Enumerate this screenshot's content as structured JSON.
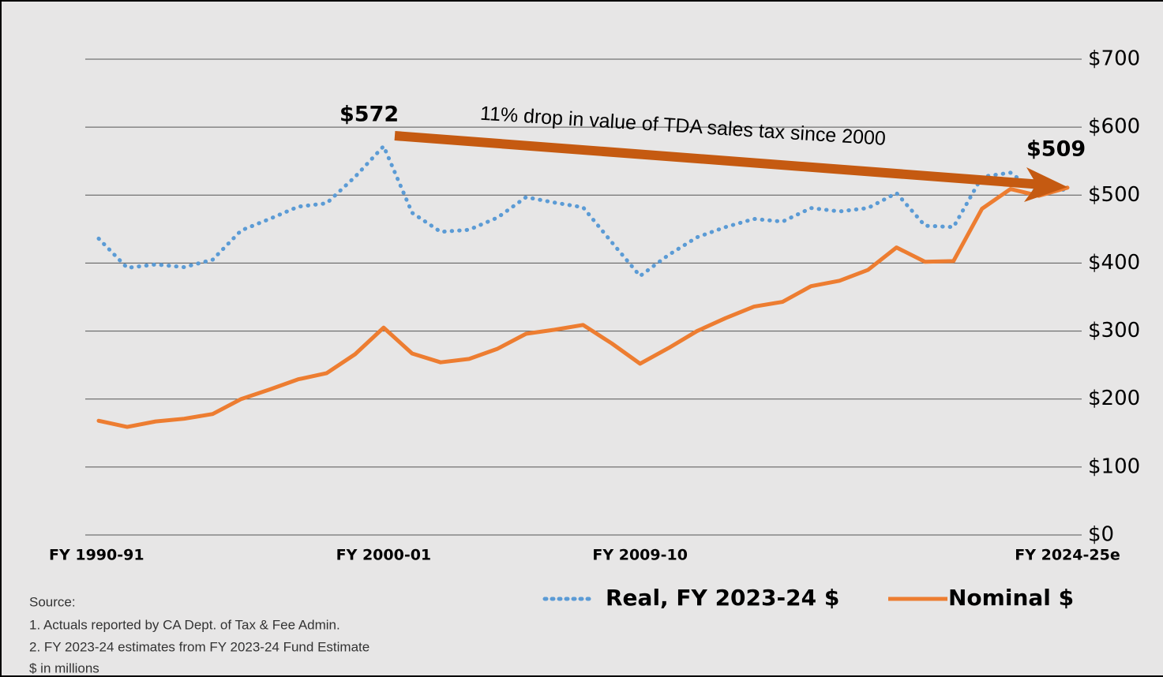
{
  "chart_data": {
    "type": "line",
    "categories": [
      "FY 1990-91",
      null,
      null,
      null,
      null,
      null,
      null,
      null,
      null,
      null,
      "FY 2000-01",
      null,
      null,
      null,
      null,
      null,
      null,
      null,
      null,
      "FY 2009-10",
      null,
      null,
      null,
      null,
      null,
      null,
      null,
      null,
      null,
      null,
      null,
      null,
      null,
      null,
      "FY 2024-25e"
    ],
    "series": [
      {
        "name": "Real, FY 2023-24 $",
        "color": "#5b9bd5",
        "style": "dotted",
        "values": [
          436,
          393,
          398,
          394,
          405,
          448,
          465,
          483,
          488,
          527,
          572,
          474,
          446,
          449,
          467,
          497,
          489,
          482,
          431,
          381,
          412,
          438,
          453,
          465,
          461,
          481,
          476,
          481,
          503,
          455,
          453,
          527,
          533,
          502,
          509
        ]
      },
      {
        "name": "Nominal $",
        "color": "#ed7d31",
        "style": "solid",
        "values": [
          168,
          159,
          167,
          171,
          178,
          200,
          214,
          229,
          238,
          266,
          305,
          267,
          254,
          259,
          274,
          296,
          302,
          309,
          282,
          252,
          275,
          300,
          319,
          336,
          343,
          366,
          374,
          390,
          423,
          402,
          403,
          480,
          509,
          499,
          511
        ]
      }
    ],
    "ylim": [
      0,
      700
    ],
    "yticks": [
      {
        "value": 0,
        "label": "$0"
      },
      {
        "value": 100,
        "label": "$100"
      },
      {
        "value": 200,
        "label": "$200"
      },
      {
        "value": 300,
        "label": "$300"
      },
      {
        "value": 400,
        "label": "$400"
      },
      {
        "value": 500,
        "label": "$500"
      },
      {
        "value": 600,
        "label": "$600"
      },
      {
        "value": 700,
        "label": "$700"
      }
    ],
    "grid": true,
    "axis_side": "right",
    "annotations": [
      "$572",
      "$509",
      "11% drop in value of TDA sales tax since 2000"
    ],
    "notes": [
      "Source:",
      "1.  Actuals reported by CA Dept. of Tax & Fee Admin.",
      "2. FY 2023-24 estimates from FY 2023-24 Fund Estimate",
      "$ in millions"
    ]
  }
}
